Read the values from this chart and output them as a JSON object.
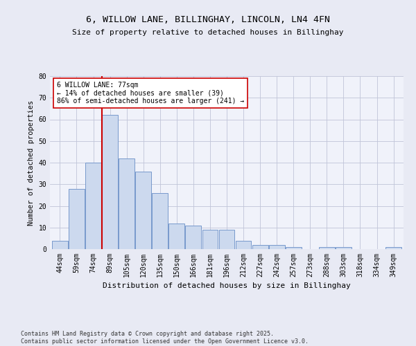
{
  "title_line1": "6, WILLOW LANE, BILLINGHAY, LINCOLN, LN4 4FN",
  "title_line2": "Size of property relative to detached houses in Billinghay",
  "xlabel": "Distribution of detached houses by size in Billinghay",
  "ylabel": "Number of detached properties",
  "categories": [
    "44sqm",
    "59sqm",
    "74sqm",
    "89sqm",
    "105sqm",
    "120sqm",
    "135sqm",
    "150sqm",
    "166sqm",
    "181sqm",
    "196sqm",
    "212sqm",
    "227sqm",
    "242sqm",
    "257sqm",
    "273sqm",
    "288sqm",
    "303sqm",
    "318sqm",
    "334sqm",
    "349sqm"
  ],
  "values": [
    4,
    28,
    40,
    62,
    42,
    36,
    26,
    12,
    11,
    9,
    9,
    4,
    2,
    2,
    1,
    0,
    1,
    1,
    0,
    0,
    1
  ],
  "bar_color": "#ccd9ee",
  "bar_edge_color": "#7799cc",
  "vline_x": 2.5,
  "vline_color": "#cc0000",
  "annotation_text": "6 WILLOW LANE: 77sqm\n← 14% of detached houses are smaller (39)\n86% of semi-detached houses are larger (241) →",
  "annotation_box_color": "#ffffff",
  "annotation_box_edge": "#cc0000",
  "ylim": [
    0,
    80
  ],
  "yticks": [
    0,
    10,
    20,
    30,
    40,
    50,
    60,
    70,
    80
  ],
  "footer": "Contains HM Land Registry data © Crown copyright and database right 2025.\nContains public sector information licensed under the Open Government Licence v3.0.",
  "bg_color": "#e8eaf4",
  "plot_bg_color": "#f0f2fa",
  "grid_color": "#c0c4d8",
  "title_fontsize": 9.5,
  "subtitle_fontsize": 8,
  "tick_fontsize": 7,
  "ylabel_fontsize": 7.5,
  "xlabel_fontsize": 8,
  "annot_fontsize": 7,
  "footer_fontsize": 6
}
